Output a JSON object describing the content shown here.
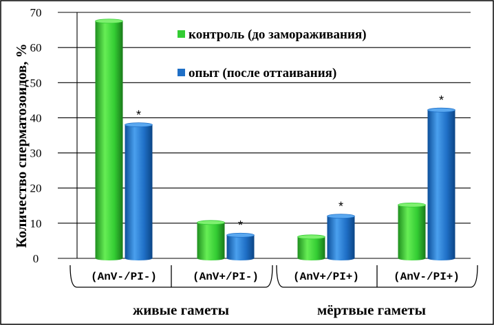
{
  "chart_data": {
    "type": "bar",
    "title": "",
    "ylabel": "Количество сперматозоидов, %",
    "xlabel": "",
    "ylim": [
      0,
      70
    ],
    "yticks": [
      0,
      10,
      20,
      30,
      40,
      50,
      60,
      70
    ],
    "categories": [
      "(AnV-/PI-)",
      "(AnV+/PI-)",
      "(AnV+/PI+)",
      "(AnV-/PI+)"
    ],
    "groups": [
      {
        "label": "живые гаметы",
        "categories": [
          0,
          1
        ]
      },
      {
        "label": "мёртвые гаметы",
        "categories": [
          2,
          3
        ]
      }
    ],
    "series": [
      {
        "name": "контроль (до замораживания)",
        "color": "#33cc33",
        "values": [
          67.5,
          10.2,
          6.1,
          15.2
        ]
      },
      {
        "name": "опыт (после оттаивания)",
        "color": "#1f6fc6",
        "values": [
          38,
          6.6,
          12,
          42.2
        ]
      }
    ],
    "annotations": [
      {
        "text": "*",
        "series": 1,
        "category": 0
      },
      {
        "text": "*",
        "series": 1,
        "category": 1
      },
      {
        "text": "*",
        "series": 1,
        "category": 2
      },
      {
        "text": "*",
        "series": 1,
        "category": 3
      }
    ],
    "grid": true,
    "legend_position": "top-right"
  }
}
